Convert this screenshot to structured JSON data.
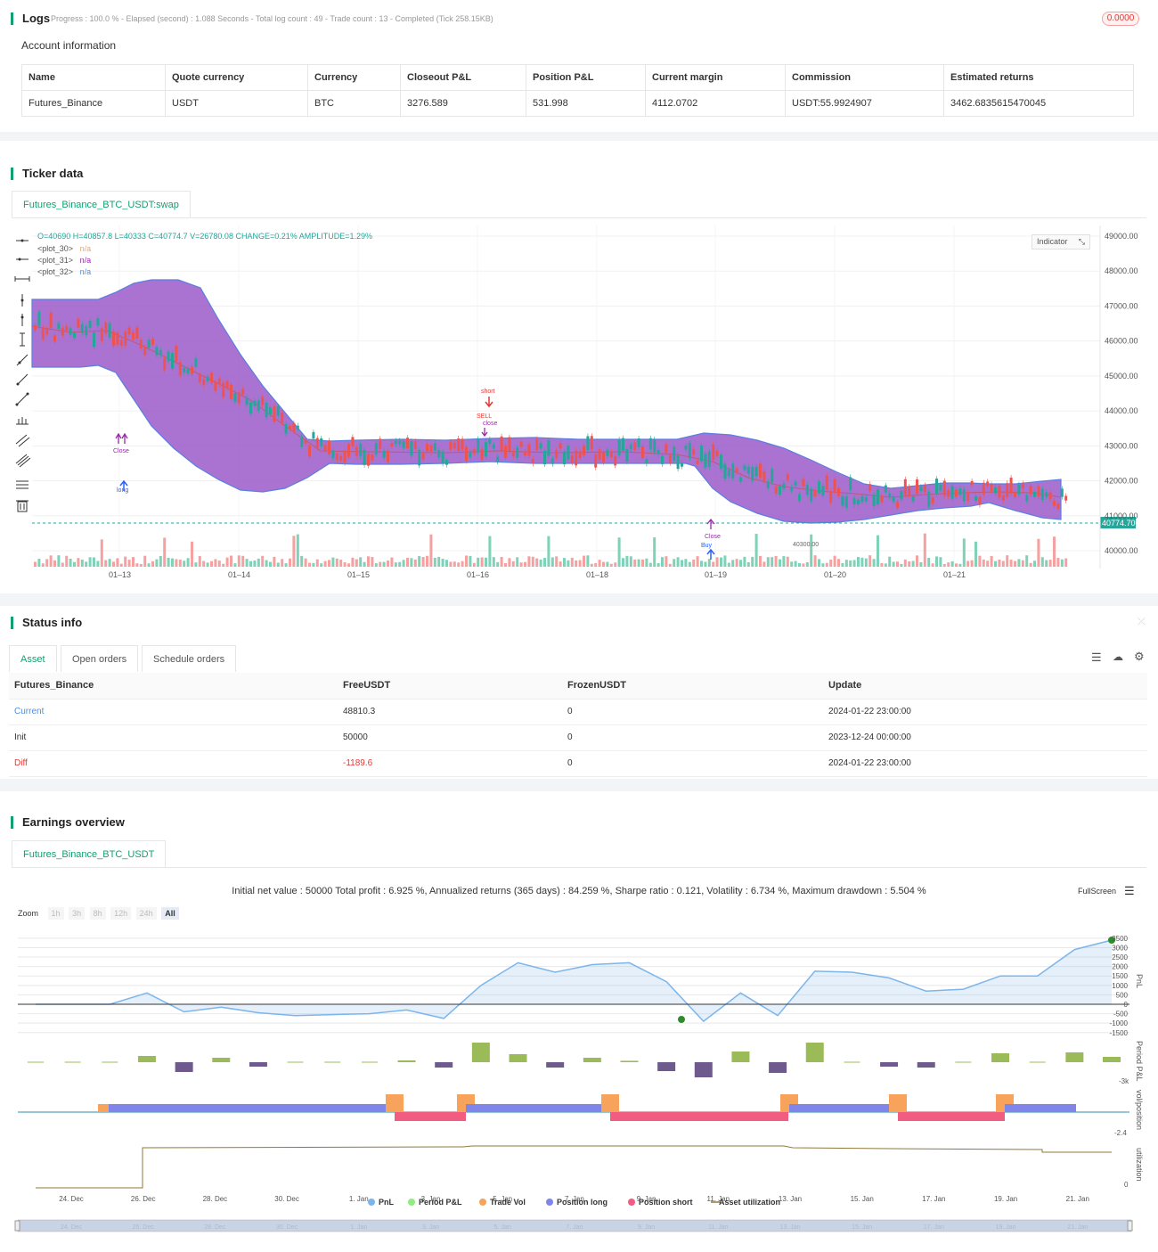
{
  "logs": {
    "title": "Logs",
    "progress": "Progress : 100.0 % - Elapsed (second) : 1.088  Seconds - Total log count : 49 - Trade count : 13 - Completed (Tick 258.15KB)",
    "badge": "0.0000"
  },
  "account": {
    "title": "Account information",
    "headers": [
      "Name",
      "Quote currency",
      "Currency",
      "Closeout P&L",
      "Position P&L",
      "Current margin",
      "Commission",
      "Estimated returns"
    ],
    "row": [
      "Futures_Binance",
      "USDT",
      "BTC",
      "3276.589",
      "531.998",
      "4112.0702",
      "USDT:55.9924907",
      "3462.6835615470045"
    ]
  },
  "ticker": {
    "title": "Ticker data",
    "tab": "Futures_Binance_BTC_USDT:swap",
    "ohlc": "O=40690 H=40857.8 L=40333 C=40774.7 V=26780.08 CHANGE=0.21% AMPLITUDE=1.29%",
    "plots": [
      {
        "name": "<plot_30>",
        "value": "n/a",
        "color": "#f7a35c"
      },
      {
        "name": "<plot_31>",
        "value": "n/a",
        "color": "#9c27b0"
      },
      {
        "name": "<plot_32>",
        "value": "n/a",
        "color": "#4a90e2"
      }
    ],
    "indicator_btn": "Indicator",
    "price_ticks": [
      "49000.00",
      "48000.00",
      "47000.00",
      "46000.00",
      "45000.00",
      "44000.00",
      "43000.00",
      "42000.00",
      "41000.00",
      "40000.00"
    ],
    "last_price": "40774.70",
    "low_label": "40300.00",
    "x_ticks": [
      "01–13",
      "01–14",
      "01–15",
      "01–16",
      "01–18",
      "01–19",
      "01–20",
      "01–21"
    ],
    "markers": {
      "short": "short",
      "sell": "SELL",
      "close": "close",
      "long": "long",
      "buy": "Buy",
      "close2": "Close"
    },
    "colors": {
      "band": "#9b59c9",
      "band_edge": "#5b7fe0",
      "up": "#26a69a",
      "down": "#ef5350",
      "vol_up": "#7fd1b8",
      "vol_down": "#f5a1a1"
    }
  },
  "status": {
    "title": "Status info",
    "tabs": [
      "Asset",
      "Open orders",
      "Schedule orders"
    ],
    "headers": [
      "Futures_Binance",
      "FreeUSDT",
      "FrozenUSDT",
      "Update"
    ],
    "rows": [
      [
        "Current",
        "48810.3",
        "0",
        "2024-01-22 23:00:00"
      ],
      [
        "Init",
        "50000",
        "0",
        "2023-12-24 00:00:00"
      ],
      [
        "Diff",
        "-1189.6",
        "0",
        "2024-01-22 23:00:00"
      ]
    ]
  },
  "earnings": {
    "title": "Earnings overview",
    "tab": "Futures_Binance_BTC_USDT",
    "summary": "Initial net value : 50000 Total profit : 6.925 %, Annualized returns (365 days) : 84.259 %, Sharpe ratio : 0.121, Volatility : 6.734 %, Maximum drawdown : 5.504 %",
    "fullscreen": "FullScreen",
    "zoom_label": "Zoom",
    "zoom_options": [
      "1h",
      "3h",
      "8h",
      "12h",
      "24h",
      "All"
    ],
    "pnl_ticks": [
      "3500",
      "3000",
      "2500",
      "2000",
      "1500",
      "1000",
      "500",
      "0",
      "-500",
      "-1000",
      "-1500"
    ],
    "axis_labels": [
      "PnL",
      "Period P&L",
      "vol/position",
      "utilization"
    ],
    "period_tick": "-3k",
    "vol_tick": "-2.4",
    "util_tick": "0",
    "x_ticks": [
      "24. Dec",
      "26. Dec",
      "28. Dec",
      "30. Dec",
      "1. Jan",
      "3. Jan",
      "5. Jan",
      "7. Jan",
      "9. Jan",
      "11. Jan",
      "13. Jan",
      "15. Jan",
      "17. Jan",
      "19. Jan",
      "21. Jan"
    ],
    "legend": [
      {
        "name": "PnL",
        "color": "#7cb5ec"
      },
      {
        "name": "Period P&L",
        "color": "#90ed7d"
      },
      {
        "name": "Trade Vol",
        "color": "#f7a35c"
      },
      {
        "name": "Position long",
        "color": "#8085e9"
      },
      {
        "name": "Position short",
        "color": "#f15c80"
      },
      {
        "name": "Asset utilization",
        "color": "#8d7a3a"
      }
    ],
    "chart_data": {
      "type": "line",
      "ylim": [
        -1500,
        3500
      ],
      "x": [
        "24. Dec",
        "25. Dec",
        "26. Dec",
        "27. Dec",
        "28. Dec",
        "29. Dec",
        "30. Dec",
        "31. Dec",
        "1. Jan",
        "2. Jan",
        "3. Jan",
        "4. Jan",
        "5. Jan",
        "6. Jan",
        "7. Jan",
        "8. Jan",
        "9. Jan",
        "10. Jan",
        "11. Jan",
        "12. Jan",
        "13. Jan",
        "14. Jan",
        "15. Jan",
        "16. Jan",
        "17. Jan",
        "18. Jan",
        "19. Jan",
        "20. Jan",
        "21. Jan",
        "22. Jan"
      ],
      "pnl": [
        0,
        0,
        0,
        600,
        -400,
        -150,
        -450,
        -600,
        -550,
        -500,
        -300,
        -750,
        1000,
        2200,
        1700,
        2100,
        2200,
        1200,
        -900,
        600,
        -600,
        1750,
        1700,
        1400,
        700,
        800,
        1500,
        1500,
        2900,
        3400
      ],
      "period_pnl": [
        0,
        0,
        0,
        350,
        -550,
        250,
        -250,
        0,
        0,
        0,
        100,
        -300,
        1100,
        450,
        -300,
        250,
        80,
        -500,
        -850,
        600,
        -600,
        1100,
        0,
        -250,
        -300,
        0,
        500,
        0,
        550,
        300
      ]
    }
  }
}
